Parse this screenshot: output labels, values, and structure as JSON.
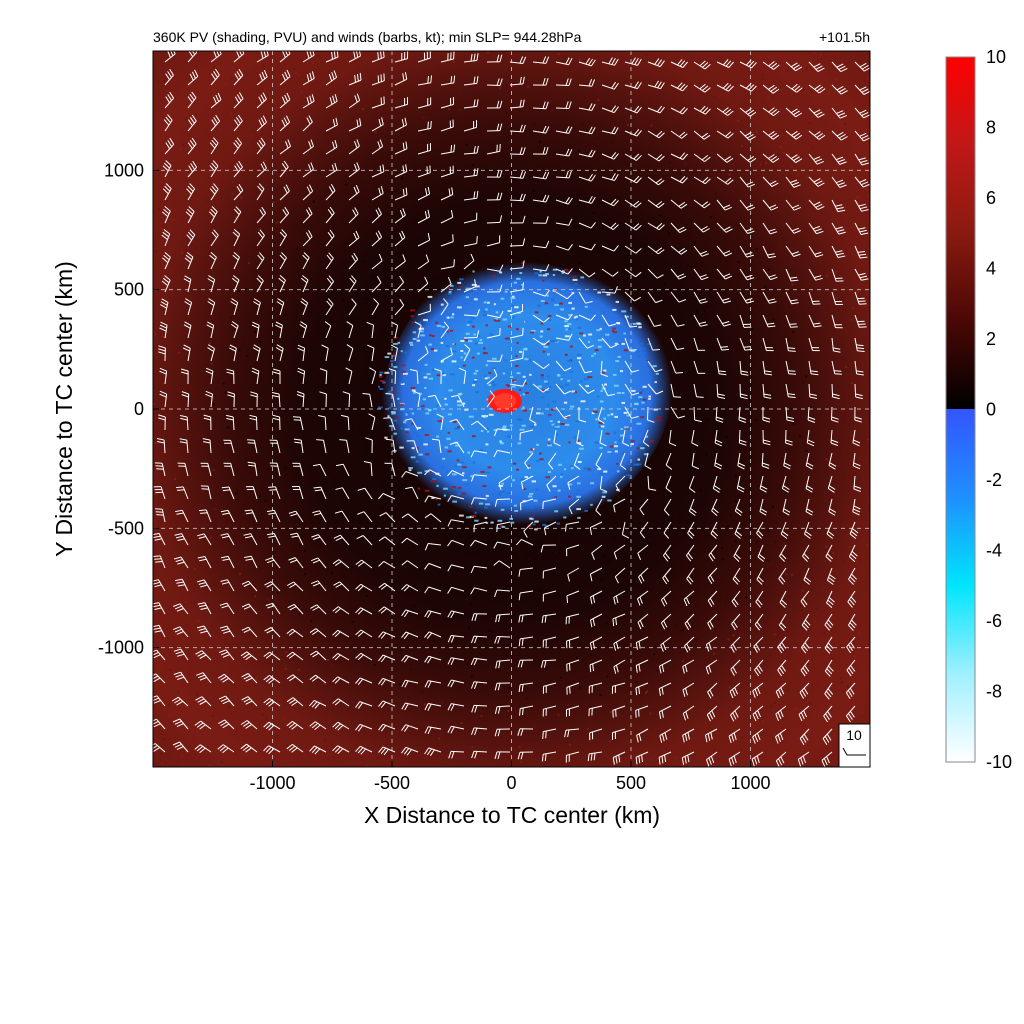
{
  "chart_data": {
    "type": "heatmap",
    "title_left": "360K PV (shading, PVU) and winds (barbs, kt); min SLP= 944.28hPa",
    "title_right": "+101.5h",
    "xlabel": "X Distance to TC center (km)",
    "ylabel": "Y Distance to TC center (km)",
    "xlim": [
      -1500,
      1500
    ],
    "ylim": [
      -1500,
      1500
    ],
    "x_ticks": [
      -1000,
      -500,
      0,
      500,
      1000
    ],
    "y_ticks": [
      -1000,
      -500,
      0,
      500,
      1000
    ],
    "x_tick_labels": [
      "-1000",
      "-500",
      "0",
      "500",
      "1000"
    ],
    "y_tick_labels": [
      "-1000",
      "-500",
      "0",
      "500",
      "1000"
    ],
    "grid": true,
    "colorbar": {
      "range": [
        -10,
        10
      ],
      "ticks": [
        10,
        8,
        6,
        4,
        2,
        0,
        -2,
        -4,
        -6,
        -8,
        -10
      ],
      "tick_labels": [
        "10",
        "8",
        "6",
        "4",
        "2",
        "0",
        "-2",
        "-4",
        "-6",
        "-8",
        "-10"
      ],
      "colors_positive": [
        "#000000",
        "#4a0805",
        "#8a1a10",
        "#c01818",
        "#ff0000"
      ],
      "colors_negative": [
        "#3355ff",
        "#1e90ff",
        "#00e5ff",
        "#9ff0ff",
        "#ffffff"
      ]
    },
    "fields": {
      "background_pv_ring_color": "#7a1a14",
      "inner_dark_color": "#1a0403",
      "negative_pv_region_color": "#2f88e8",
      "core_pv_color": "#ff1a1a",
      "barb_color": "#ffffff"
    },
    "reference_vector": {
      "label": "10"
    }
  }
}
